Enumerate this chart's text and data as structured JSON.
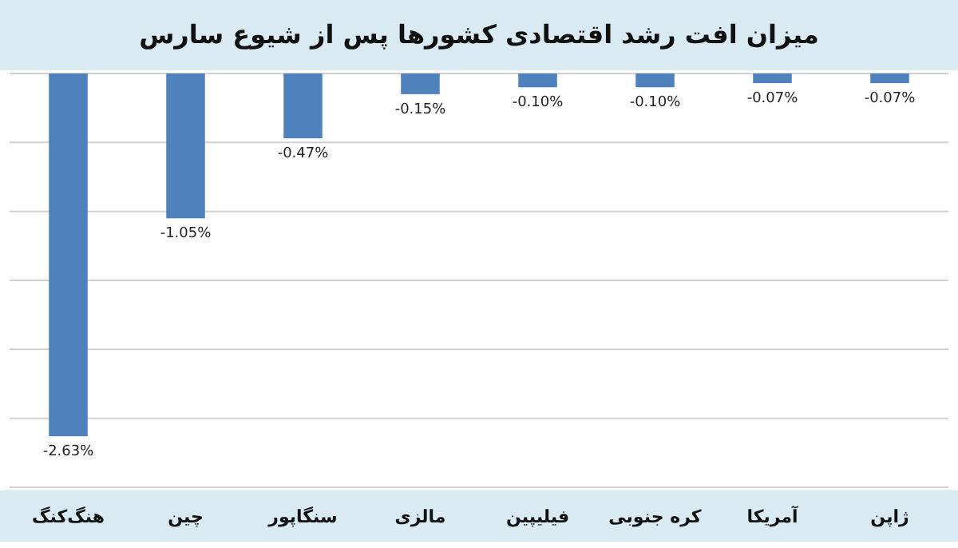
{
  "chart_data": {
    "type": "bar",
    "title": "میزان افت رشد اقتصادی کشورها پس از شیوع سارس",
    "categories": [
      "هنگ‌کنگ",
      "چین",
      "سنگاپور",
      "مالزی",
      "فیلیپین",
      "کره جنوبی",
      "آمریکا",
      "ژاپن"
    ],
    "values": [
      -2.63,
      -1.05,
      -0.47,
      -0.15,
      -0.1,
      -0.1,
      -0.07,
      -0.07
    ],
    "value_labels": [
      "-2.63%",
      "-1.05%",
      "-0.47%",
      "-0.15%",
      "-0.10%",
      "-0.10%",
      "-0.07%",
      "-0.07%"
    ],
    "color": "#4f81bd",
    "ylim": [
      -3,
      0
    ],
    "yticks": [
      {
        "value": 0,
        "label": null
      },
      {
        "value": -0.5,
        "label": null
      },
      {
        "value": -1,
        "label": null
      },
      {
        "value": -1.5,
        "label": null
      },
      {
        "value": -2,
        "label": null
      },
      {
        "value": -2.5,
        "label": null
      },
      {
        "value": -3,
        "label": null
      }
    ],
    "grid": "y",
    "tick_labels": "x"
  }
}
